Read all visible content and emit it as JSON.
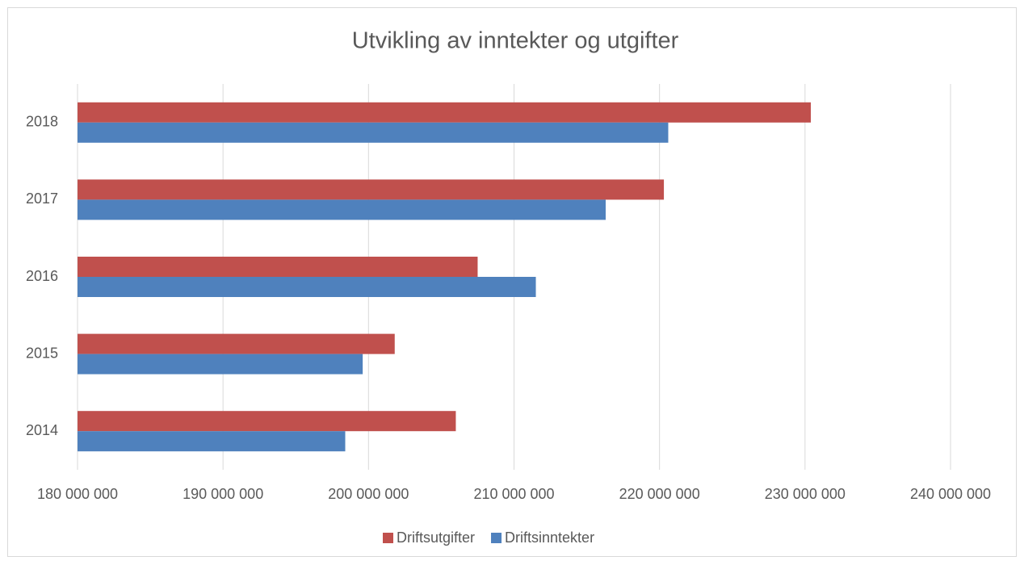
{
  "chart_data": {
    "type": "hbar",
    "title": "Utvikling av inntekter og utgifter",
    "categories": [
      "2014",
      "2015",
      "2016",
      "2017",
      "2018"
    ],
    "series": [
      {
        "name": "Driftsutgifter",
        "color": "#c0504d",
        "values": [
          206000000,
          201800000,
          207500000,
          220300000,
          230400000
        ]
      },
      {
        "name": "Driftsinntekter",
        "color": "#4f81bd",
        "values": [
          198400000,
          199600000,
          211500000,
          216300000,
          220600000
        ]
      }
    ],
    "xlim": [
      180000000,
      240000000
    ],
    "xticks": [
      {
        "value": 180000000,
        "label": "180 000 000"
      },
      {
        "value": 190000000,
        "label": "190 000 000"
      },
      {
        "value": 200000000,
        "label": "200 000 000"
      },
      {
        "value": 210000000,
        "label": "210 000 000"
      },
      {
        "value": 220000000,
        "label": "220 000 000"
      },
      {
        "value": 230000000,
        "label": "230 000 000"
      },
      {
        "value": 240000000,
        "label": "240 000 000"
      }
    ],
    "grid": true,
    "legend": "bottom"
  }
}
